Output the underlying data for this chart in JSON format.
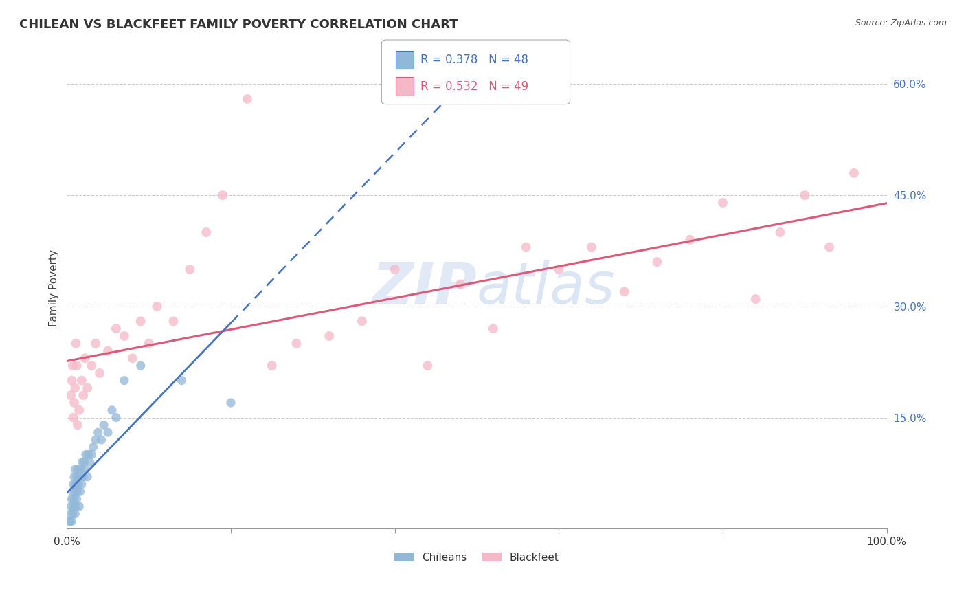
{
  "title": "CHILEAN VS BLACKFEET FAMILY POVERTY CORRELATION CHART",
  "source": "Source: ZipAtlas.com",
  "ylabel": "Family Poverty",
  "watermark_zip": "ZIP",
  "watermark_atlas": "atlas",
  "xlim": [
    0.0,
    1.0
  ],
  "ylim": [
    0.0,
    0.65
  ],
  "grid_color": "#cccccc",
  "background_color": "#ffffff",
  "chilean_color": "#92b8d8",
  "blackfeet_color": "#f5b8c8",
  "chilean_line_color": "#4472c4",
  "blackfeet_line_color": "#e05878",
  "chilean_R": 0.378,
  "chilean_N": 48,
  "blackfeet_R": 0.532,
  "blackfeet_N": 49,
  "chileans_label": "Chileans",
  "blackfeet_label": "Blackfeet",
  "chilean_x": [
    0.003,
    0.004,
    0.005,
    0.005,
    0.006,
    0.006,
    0.007,
    0.007,
    0.008,
    0.008,
    0.009,
    0.009,
    0.01,
    0.01,
    0.01,
    0.011,
    0.011,
    0.012,
    0.012,
    0.013,
    0.013,
    0.014,
    0.015,
    0.015,
    0.016,
    0.017,
    0.018,
    0.019,
    0.02,
    0.021,
    0.022,
    0.023,
    0.025,
    0.026,
    0.028,
    0.03,
    0.032,
    0.035,
    0.038,
    0.042,
    0.045,
    0.05,
    0.055,
    0.06,
    0.07,
    0.09,
    0.14,
    0.2
  ],
  "chilean_y": [
    0.01,
    0.01,
    0.02,
    0.03,
    0.01,
    0.04,
    0.02,
    0.05,
    0.03,
    0.06,
    0.04,
    0.07,
    0.02,
    0.05,
    0.08,
    0.03,
    0.06,
    0.04,
    0.07,
    0.05,
    0.08,
    0.06,
    0.03,
    0.07,
    0.05,
    0.08,
    0.06,
    0.09,
    0.07,
    0.09,
    0.08,
    0.1,
    0.07,
    0.1,
    0.09,
    0.1,
    0.11,
    0.12,
    0.13,
    0.12,
    0.14,
    0.13,
    0.16,
    0.15,
    0.2,
    0.22,
    0.2,
    0.17
  ],
  "blackfeet_x": [
    0.005,
    0.006,
    0.007,
    0.008,
    0.009,
    0.01,
    0.011,
    0.012,
    0.013,
    0.015,
    0.018,
    0.02,
    0.022,
    0.025,
    0.03,
    0.035,
    0.04,
    0.05,
    0.06,
    0.07,
    0.08,
    0.09,
    0.1,
    0.11,
    0.13,
    0.15,
    0.17,
    0.19,
    0.22,
    0.25,
    0.28,
    0.32,
    0.36,
    0.4,
    0.44,
    0.48,
    0.52,
    0.56,
    0.6,
    0.64,
    0.68,
    0.72,
    0.76,
    0.8,
    0.84,
    0.87,
    0.9,
    0.93,
    0.96
  ],
  "blackfeet_y": [
    0.18,
    0.2,
    0.22,
    0.15,
    0.17,
    0.19,
    0.25,
    0.22,
    0.14,
    0.16,
    0.2,
    0.18,
    0.23,
    0.19,
    0.22,
    0.25,
    0.21,
    0.24,
    0.27,
    0.26,
    0.23,
    0.28,
    0.25,
    0.3,
    0.28,
    0.35,
    0.4,
    0.45,
    0.58,
    0.22,
    0.25,
    0.26,
    0.28,
    0.35,
    0.22,
    0.33,
    0.27,
    0.38,
    0.35,
    0.38,
    0.32,
    0.36,
    0.39,
    0.44,
    0.31,
    0.4,
    0.45,
    0.38,
    0.48
  ]
}
